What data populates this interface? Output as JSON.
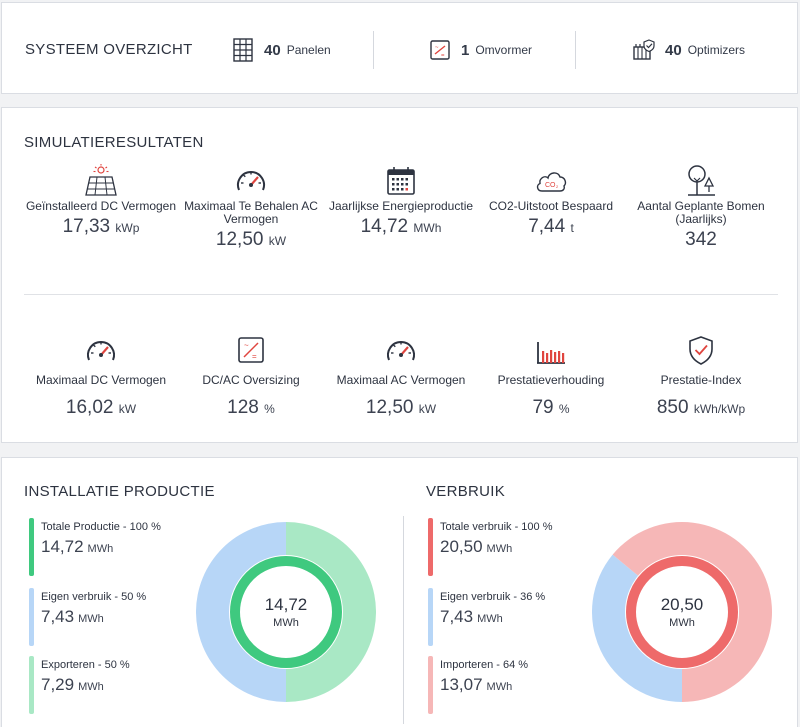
{
  "overview": {
    "title": "SYSTEEM OVERZICHT",
    "panels": {
      "count": "40",
      "label": "Panelen",
      "icon": "solar-panel-grid-icon"
    },
    "inverters": {
      "count": "1",
      "label": "Omvormer",
      "icon": "inverter-icon"
    },
    "optimizers": {
      "count": "40",
      "label": "Optimizers",
      "icon": "optimizer-icon"
    }
  },
  "simulation": {
    "title": "SIMULATIERESULTATEN",
    "row1": [
      {
        "icon": "solar-panel-icon",
        "label": "Geïnstalleerd DC Vermogen",
        "value": "17,33",
        "unit": "kWp"
      },
      {
        "icon": "gauge-icon",
        "label": "Maximaal Te Behalen AC Vermogen",
        "value": "12,50",
        "unit": "kW"
      },
      {
        "icon": "calendar-icon",
        "label": "Jaarlijkse Energieproductie",
        "value": "14,72",
        "unit": "MWh"
      },
      {
        "icon": "co2-cloud-icon",
        "label": "CO2-Uitstoot Bespaard",
        "value": "7,44",
        "unit": "t"
      },
      {
        "icon": "trees-icon",
        "label": "Aantal Geplante Bomen (Jaarlijks)",
        "value": "342",
        "unit": ""
      }
    ],
    "row2": [
      {
        "icon": "gauge-icon",
        "label": "Maximaal DC Vermogen",
        "value": "16,02",
        "unit": "kW"
      },
      {
        "icon": "inverter-icon",
        "label": "DC/AC Oversizing",
        "value": "128",
        "unit": "%"
      },
      {
        "icon": "gauge-icon",
        "label": "Maximaal AC Vermogen",
        "value": "12,50",
        "unit": "kW"
      },
      {
        "icon": "bar-chart-icon",
        "label": "Prestatieverhouding",
        "value": "79",
        "unit": "%"
      },
      {
        "icon": "shield-check-icon",
        "label": "Prestatie-Index",
        "value": "850",
        "unit": "kWh/kWp"
      }
    ]
  },
  "production": {
    "title": "INSTALLATIE PRODUCTIE",
    "legend": [
      {
        "label": "Totale Productie - 100 %",
        "value": "14,72",
        "unit": "MWh",
        "color": "#3fc97f"
      },
      {
        "label": "Eigen verbruik - 50 %",
        "value": "7,43",
        "unit": "MWh",
        "color": "#b7d6f7"
      },
      {
        "label": "Exporteren - 50 %",
        "value": "7,29",
        "unit": "MWh",
        "color": "#a9e8c5"
      }
    ],
    "center": {
      "value": "14,72",
      "unit": "MWh"
    },
    "ring": {
      "segments": [
        {
          "share": 0.5,
          "color": "#b7d6f7"
        },
        {
          "share": 0.5,
          "color": "#a9e8c5"
        }
      ],
      "inner_color": "#3fc97f"
    }
  },
  "consumption": {
    "title": "VERBRUIK",
    "legend": [
      {
        "label": "Totale verbruik - 100 %",
        "value": "20,50",
        "unit": "MWh",
        "color": "#ee6a6a"
      },
      {
        "label": "Eigen verbruik - 36 %",
        "value": "7,43",
        "unit": "MWh",
        "color": "#b7d6f7"
      },
      {
        "label": "Importeren - 64 %",
        "value": "13,07",
        "unit": "MWh",
        "color": "#f6b7b7"
      }
    ],
    "center": {
      "value": "20,50",
      "unit": "MWh"
    },
    "ring": {
      "segments": [
        {
          "share": 0.36,
          "color": "#b7d6f7"
        },
        {
          "share": 0.64,
          "color": "#f6b7b7"
        }
      ],
      "inner_color": "#ee6a6a"
    }
  }
}
